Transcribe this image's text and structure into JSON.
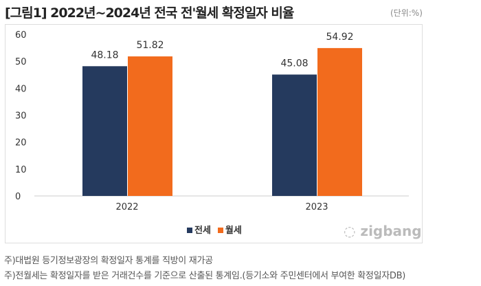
{
  "chart_data": {
    "type": "bar",
    "title": "[그림1] 2022년~2024년 전국 전'월세 확정일자 비율",
    "unit": "(단위:%)",
    "categories": [
      "2022",
      "2023"
    ],
    "series": [
      {
        "name": "전세",
        "values": [
          48.18,
          45.08
        ],
        "color": "#253a5e"
      },
      {
        "name": "월세",
        "values": [
          51.82,
          54.92
        ],
        "color": "#f26b1d"
      }
    ],
    "ylim": [
      0,
      60
    ],
    "yticks": [
      0,
      10,
      20,
      30,
      40,
      50,
      60
    ],
    "grid": false,
    "legend": "bottom"
  },
  "logo": "zigbang",
  "notes": [
    "주)대법원 등기정보광장의 확정일자 통계를 직방이 재가공",
    "주)전월세는 확정일자를 받은 거래건수를 기준으로 산출된 통계임.(등기소와 주민센터에서 부여한 확정일자DB)"
  ]
}
